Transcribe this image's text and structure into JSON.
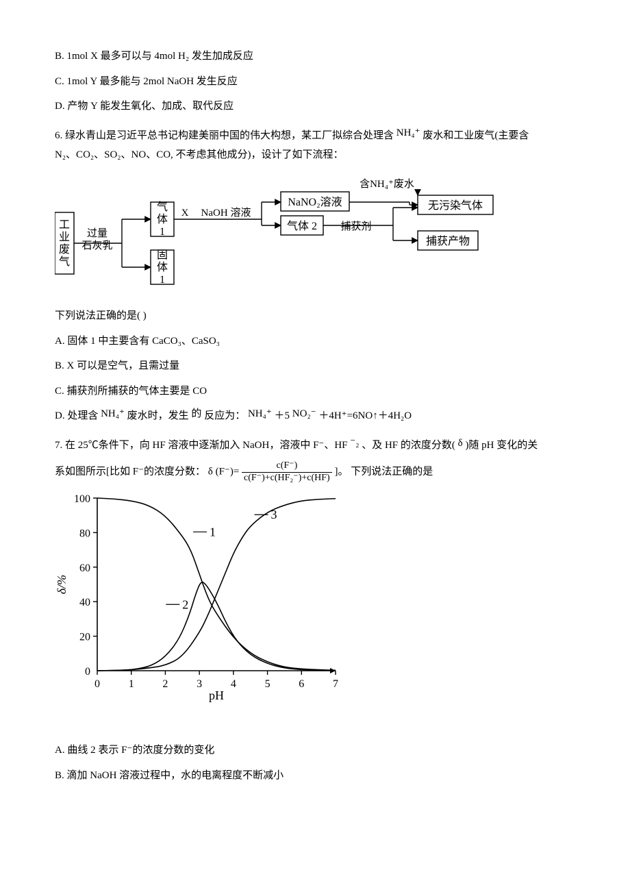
{
  "q5_options": {
    "B": "B. 1mol X 最多可以与 4mol H₂ 发生加成反应",
    "C": "C. 1mol Y 最多能与 2mol NaOH 发生反应",
    "D": "D. 产物 Y 能发生氧化、加成、取代反应"
  },
  "q6": {
    "stem_a": "6. 绿水青山是习近平总书记构建美丽中国的伟大构想，某工厂拟综合处理含 ",
    "stem_nh4": "NH₄⁺",
    "stem_b": " 废水和工业废气(主要含",
    "stem_c": "N₂、CO₂、SO₂、NO、CO, 不考虑其他成分)，设计了如下流程：",
    "flow": {
      "box_waste_gas": "工业废气",
      "lbl_lime": "过量石灰乳",
      "box_gas1": "气体1",
      "box_solid1": "固体1",
      "lbl_X": "X",
      "lbl_naoh": "NaOH 溶液",
      "box_nano2": "NaNO₂溶液",
      "box_gas2": "气体 2",
      "lbl_nh4_waste": "含NH₄⁺废水",
      "lbl_capture": "捕获剂",
      "box_nopollute": "无污染气体",
      "box_capture_prod": "捕获产物",
      "box_color": "#000000",
      "bg": "#ffffff",
      "font_size_box": 16
    },
    "stem_d": "下列说法正确的是(        )",
    "options": {
      "A": "A.  固体 1 中主要含有 CaCO₃、CaSO₃",
      "B": "B.  X 可以是空气，且需过量",
      "C": "C.  捕获剂所捕获的气体主要是 CO",
      "D_pre": "D.  处理含 ",
      "D_nh4": "NH₄⁺",
      "D_mid": " 废水时，发生",
      "D_de": "的",
      "D_mid2": "反应为：  ",
      "D_eq_a": "NH₄⁺",
      "D_eq_b": " ＋5 ",
      "D_eq_c": "NO₂⁻",
      "D_eq_d": " ＋4H⁺=6NO↑＋4H₂O"
    }
  },
  "q7": {
    "stem_a": "7. 在 25℃条件下，向 HF 溶液中逐渐加入 NaOH，溶液中 F⁻、HF",
    "stem_hf2_sup": "⁻₂",
    "stem_b": "、及 HF 的浓度分数(",
    "stem_delta": "δ",
    "stem_c": ")随 pH 变化的关",
    "stem_d": "系如图所示[比如 F⁻的浓度分数： ",
    "frac_lhs": "δ (F⁻)=",
    "frac_num": "c(F⁻)",
    "frac_den": "c(F⁻)+c(HF₂⁻)+c(HF)",
    "stem_e": "]。 下列说法正确的是",
    "chart": {
      "type": "line",
      "xlabel": "pH",
      "ylabel": "δ/%",
      "xlim": [
        0,
        7
      ],
      "ylim": [
        0,
        100
      ],
      "xticks": [
        0,
        1,
        2,
        3,
        4,
        5,
        6,
        7
      ],
      "yticks": [
        0,
        20,
        40,
        60,
        80,
        100
      ],
      "axis_fontsize": 18,
      "tick_fontsize": 16,
      "line_color": "#000000",
      "line_width": 1.6,
      "bg": "#ffffff",
      "series": {
        "1": {
          "label": "1",
          "label_pos": {
            "x": 3.3,
            "y": 78
          },
          "pts": [
            [
              0,
              100
            ],
            [
              0.5,
              99.5
            ],
            [
              1,
              98.5
            ],
            [
              1.5,
              96
            ],
            [
              2,
              90
            ],
            [
              2.5,
              78
            ],
            [
              2.75,
              70
            ],
            [
              3,
              56
            ],
            [
              3.25,
              42
            ],
            [
              3.5,
              33
            ],
            [
              4,
              19
            ],
            [
              4.5,
              10
            ],
            [
              5,
              5
            ],
            [
              5.5,
              2
            ],
            [
              6,
              1
            ],
            [
              6.5,
              0.5
            ],
            [
              7,
              0.3
            ]
          ]
        },
        "2": {
          "label": "2",
          "label_pos": {
            "x": 2.5,
            "y": 36
          },
          "pts": [
            [
              0,
              0
            ],
            [
              0.8,
              0.3
            ],
            [
              1.2,
              1
            ],
            [
              1.6,
              3
            ],
            [
              2,
              8
            ],
            [
              2.4,
              18
            ],
            [
              2.7,
              32
            ],
            [
              2.9,
              45
            ],
            [
              3.05,
              52
            ],
            [
              3.2,
              50
            ],
            [
              3.5,
              40
            ],
            [
              3.8,
              27
            ],
            [
              4.1,
              17
            ],
            [
              4.5,
              9
            ],
            [
              5,
              4
            ],
            [
              5.5,
              1.5
            ],
            [
              6,
              0.6
            ],
            [
              6.5,
              0.2
            ],
            [
              7,
              0.1
            ]
          ]
        },
        "3": {
          "label": "3",
          "label_pos": {
            "x": 5.1,
            "y": 88
          },
          "pts": [
            [
              0,
              0
            ],
            [
              0.5,
              0.2
            ],
            [
              1,
              0.5
            ],
            [
              1.5,
              1.5
            ],
            [
              2,
              3
            ],
            [
              2.5,
              8
            ],
            [
              3,
              22
            ],
            [
              3.25,
              32
            ],
            [
              3.5,
              44
            ],
            [
              3.75,
              56
            ],
            [
              4,
              68
            ],
            [
              4.25,
              77
            ],
            [
              4.5,
              84
            ],
            [
              5,
              92
            ],
            [
              5.5,
              96
            ],
            [
              6,
              98.5
            ],
            [
              6.5,
              99.3
            ],
            [
              7,
              99.7
            ]
          ]
        }
      }
    },
    "options": {
      "A": "A. 曲线 2 表示 F⁻的浓度分数的变化",
      "B": "B. 滴加 NaOH 溶液过程中，水的电离程度不断减小"
    }
  }
}
